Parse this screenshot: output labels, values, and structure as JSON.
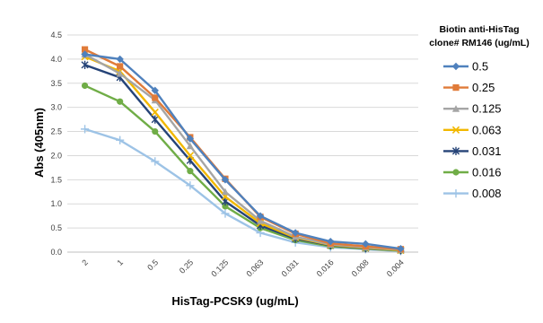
{
  "chart_data": {
    "type": "line",
    "title": "",
    "xlabel": "HisTag-PCSK9 (ug/mL)",
    "ylabel": "Abs (405nm)",
    "ylim": [
      0,
      4.5
    ],
    "yticks": [
      "0.0",
      "0.5",
      "1.0",
      "1.5",
      "2.0",
      "2.5",
      "3.0",
      "3.5",
      "4.0",
      "4.5"
    ],
    "categories": [
      "2",
      "1",
      "0.5",
      "0.25",
      "0.125",
      "0.063",
      "0.031",
      "0.016",
      "0.008",
      "0.004"
    ],
    "grid": true,
    "legend_placement": "right",
    "legend_title": [
      "Biotin anti-HisTag",
      "clone# RM146 (ug/mL)"
    ],
    "series": [
      {
        "name": "0.5",
        "color": "#4F81BD",
        "marker": "diamond",
        "values": [
          4.1,
          4.0,
          3.35,
          2.35,
          1.5,
          0.75,
          0.4,
          0.22,
          0.17,
          0.07
        ]
      },
      {
        "name": "0.25",
        "color": "#E07B39",
        "marker": "square",
        "values": [
          4.2,
          3.85,
          3.2,
          2.38,
          1.52,
          0.73,
          0.38,
          0.18,
          0.12,
          0.06
        ]
      },
      {
        "name": "0.125",
        "color": "#A5A5A5",
        "marker": "triangle",
        "values": [
          4.1,
          3.7,
          3.15,
          2.2,
          1.25,
          0.65,
          0.32,
          0.16,
          0.1,
          0.05
        ]
      },
      {
        "name": "0.063",
        "color": "#F2B800",
        "marker": "x",
        "values": [
          4.05,
          3.75,
          2.9,
          2.0,
          1.15,
          0.6,
          0.3,
          0.15,
          0.09,
          0.04
        ]
      },
      {
        "name": "0.031",
        "color": "#264478",
        "marker": "star",
        "values": [
          3.88,
          3.62,
          2.75,
          1.9,
          1.05,
          0.55,
          0.28,
          0.14,
          0.08,
          0.04
        ]
      },
      {
        "name": "0.016",
        "color": "#70AD47",
        "marker": "circle",
        "values": [
          3.45,
          3.12,
          2.5,
          1.68,
          0.95,
          0.5,
          0.25,
          0.12,
          0.07,
          0.03
        ]
      },
      {
        "name": "0.008",
        "color": "#9DC3E6",
        "marker": "plus",
        "values": [
          2.55,
          2.32,
          1.88,
          1.38,
          0.8,
          0.4,
          0.2,
          0.1,
          0.06,
          0.02
        ]
      }
    ]
  }
}
